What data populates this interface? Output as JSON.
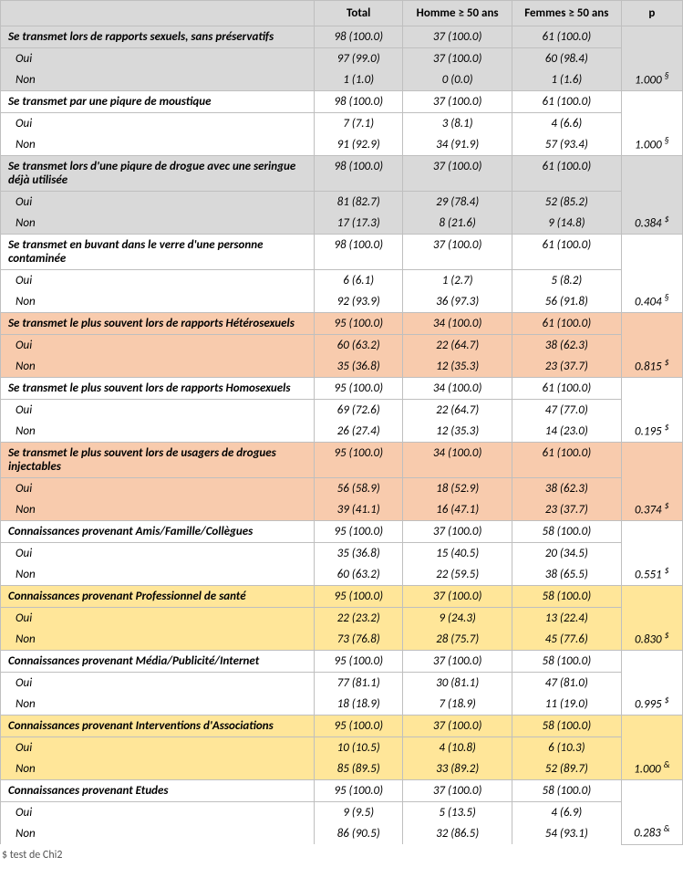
{
  "headers": {
    "label": "",
    "total": "Total",
    "homme": "Homme ≥ 50 ans",
    "femme": "Femmes ≥ 50 ans",
    "p": "p"
  },
  "sections": [
    {
      "shade": "grey",
      "title": " Se transmet lors de rapports sexuels, sans préservatifs",
      "totals": {
        "total": "98 (100.0)",
        "homme": "37 (100.0)",
        "femme": "61 (100.0)"
      },
      "rows": [
        {
          "label": "Oui",
          "total": "97 (99.0)",
          "homme": "37 (100.0)",
          "femme": "60 (98.4)"
        },
        {
          "label": "Non",
          "total": "1 (1.0)",
          "homme": "0 (0.0)",
          "femme": "1 (1.6)"
        }
      ],
      "p": "1.000",
      "p_sym": "§"
    },
    {
      "shade": "",
      "title": "Se transmet par une piqure de moustique",
      "totals": {
        "total": "98 (100.0)",
        "homme": "37 (100.0)",
        "femme": "61 (100.0)"
      },
      "rows": [
        {
          "label": "Oui",
          "total": "7 (7.1)",
          "homme": "3 (8.1)",
          "femme": "4 (6.6)"
        },
        {
          "label": "Non",
          "total": "91 (92.9)",
          "homme": "34 (91.9)",
          "femme": "57 (93.4)"
        }
      ],
      "p": "1.000",
      "p_sym": "§"
    },
    {
      "shade": "grey",
      "title": "Se transmet lors d'une piqure de drogue avec une seringue déjà utilisée",
      "totals": {
        "total": "98 (100.0)",
        "homme": "37 (100.0)",
        "femme": "61 (100.0)"
      },
      "rows": [
        {
          "label": "Oui",
          "total": "81 (82.7)",
          "homme": "29 (78.4)",
          "femme": "52 (85.2)"
        },
        {
          "label": "Non",
          "total": "17 (17.3)",
          "homme": "8 (21.6)",
          "femme": "9 (14.8)"
        }
      ],
      "p": "0.384",
      "p_sym": "$"
    },
    {
      "shade": "",
      "title": "Se transmet en buvant dans le verre d'une personne contaminée",
      "totals": {
        "total": "98 (100.0)",
        "homme": "37 (100.0)",
        "femme": "61 (100.0)"
      },
      "rows": [
        {
          "label": "Oui",
          "total": "6 (6.1)",
          "homme": "1 (2.7)",
          "femme": "5 (8.2)"
        },
        {
          "label": "Non",
          "total": "92 (93.9)",
          "homme": "36 (97.3)",
          "femme": "56 (91.8)"
        }
      ],
      "p": "0.404",
      "p_sym": "§"
    },
    {
      "shade": "peach",
      "title": "Se transmet le plus souvent lors de rapports Hétérosexuels",
      "totals": {
        "total": "95 (100.0)",
        "homme": "34 (100.0)",
        "femme": "61 (100.0)"
      },
      "rows": [
        {
          "label": "Oui",
          "total": "60 (63.2)",
          "homme": "22 (64.7)",
          "femme": "38 (62.3)"
        },
        {
          "label": "Non",
          "total": "35 (36.8)",
          "homme": "12 (35.3)",
          "femme": "23 (37.7)"
        }
      ],
      "p": "0.815",
      "p_sym": "$"
    },
    {
      "shade": "",
      "title": "Se transmet le plus souvent lors de rapports Homosexuels",
      "totals": {
        "total": "95 (100.0)",
        "homme": "34 (100.0)",
        "femme": "61 (100.0)"
      },
      "rows": [
        {
          "label": "Oui",
          "total": "69 (72.6)",
          "homme": "22 (64.7)",
          "femme": "47 (77.0)"
        },
        {
          "label": "Non",
          "total": "26 (27.4)",
          "homme": "12 (35.3)",
          "femme": "14 (23.0)"
        }
      ],
      "p": "0.195",
      "p_sym": "$"
    },
    {
      "shade": "peach",
      "title": "Se transmet le plus souvent lors de usagers de drogues injectables",
      "totals": {
        "total": "95 (100.0)",
        "homme": "34 (100.0)",
        "femme": "61 (100.0)"
      },
      "rows": [
        {
          "label": "Oui",
          "total": "56 (58.9)",
          "homme": "18 (52.9)",
          "femme": "38 (62.3)"
        },
        {
          "label": "Non",
          "total": "39 (41.1)",
          "homme": "16 (47.1)",
          "femme": "23 (37.7)"
        }
      ],
      "p": "0.374",
      "p_sym": "$"
    },
    {
      "shade": "",
      "title": "Connaissances provenant Amis/Famille/Collègues",
      "totals": {
        "total": "95 (100.0)",
        "homme": "37 (100.0)",
        "femme": "58 (100.0)"
      },
      "rows": [
        {
          "label": "Oui",
          "total": "35 (36.8)",
          "homme": "15 (40.5)",
          "femme": "20 (34.5)"
        },
        {
          "label": "Non",
          "total": "60 (63.2)",
          "homme": "22 (59.5)",
          "femme": "38 (65.5)"
        }
      ],
      "p": "0.551",
      "p_sym": "$"
    },
    {
      "shade": "yellow",
      "title": "Connaissances provenant Professionnel de santé",
      "totals": {
        "total": "95 (100.0)",
        "homme": "37 (100.0)",
        "femme": "58 (100.0)"
      },
      "rows": [
        {
          "label": "Oui",
          "total": "22 (23.2)",
          "homme": "9 (24.3)",
          "femme": "13 (22.4)"
        },
        {
          "label": "Non",
          "total": "73 (76.8)",
          "homme": "28 (75.7)",
          "femme": "45 (77.6)"
        }
      ],
      "p": "0.830",
      "p_sym": "$"
    },
    {
      "shade": "",
      "title": "Connaissances provenant Média/Publicité/Internet",
      "totals": {
        "total": "95 (100.0)",
        "homme": "37 (100.0)",
        "femme": "58 (100.0)"
      },
      "rows": [
        {
          "label": "Oui",
          "total": "77 (81.1)",
          "homme": "30 (81.1)",
          "femme": "47 (81.0)"
        },
        {
          "label": "Non",
          "total": "18 (18.9)",
          "homme": "7 (18.9)",
          "femme": "11 (19.0)"
        }
      ],
      "p": "0.995",
      "p_sym": "$"
    },
    {
      "shade": "yellow",
      "title": "Connaissances provenant Interventions d'Associations",
      "totals": {
        "total": "95 (100.0)",
        "homme": "37 (100.0)",
        "femme": "58 (100.0)"
      },
      "rows": [
        {
          "label": "Oui",
          "total": "10 (10.5)",
          "homme": "4 (10.8)",
          "femme": "6 (10.3)"
        },
        {
          "label": "Non",
          "total": "85 (89.5)",
          "homme": "33 (89.2)",
          "femme": "52 (89.7)"
        }
      ],
      "p": "1.000",
      "p_sym": "&"
    },
    {
      "shade": "",
      "title": "Connaissances provenant Etudes",
      "totals": {
        "total": "95 (100.0)",
        "homme": "37 (100.0)",
        "femme": "58 (100.0)"
      },
      "rows": [
        {
          "label": "Oui",
          "total": "9 (9.5)",
          "homme": "5 (13.5)",
          "femme": "4 (6.9)"
        },
        {
          "label": "Non",
          "total": "86 (90.5)",
          "homme": "32 (86.5)",
          "femme": "54 (93.1)"
        }
      ],
      "p": "0.283",
      "p_sym": "&"
    }
  ],
  "footnote": "$ test de Chi2"
}
